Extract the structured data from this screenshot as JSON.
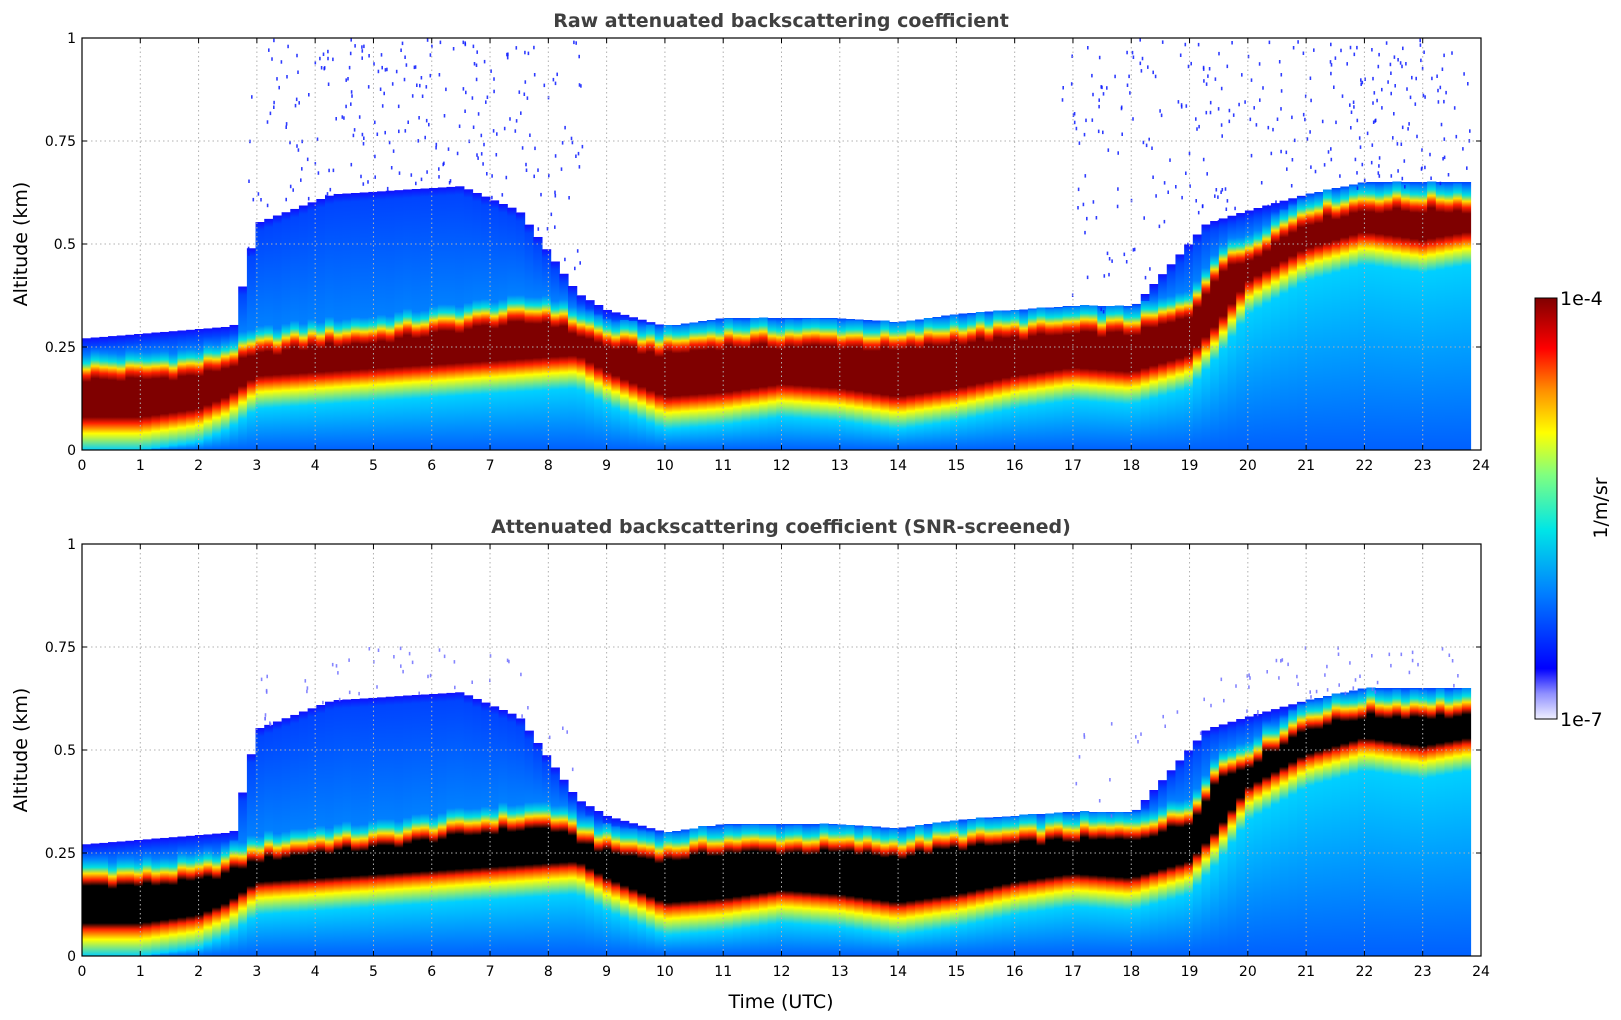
{
  "chart_data": [
    {
      "type": "heatmap",
      "title": "Raw attenuated backscattering coefficient",
      "xlabel": "",
      "ylabel": "Altitude (km)",
      "xlim": [
        0,
        24
      ],
      "ylim": [
        0,
        1
      ],
      "x_ticks": [
        "0",
        "1",
        "2",
        "3",
        "4",
        "5",
        "6",
        "7",
        "8",
        "9",
        "10",
        "11",
        "12",
        "13",
        "14",
        "15",
        "16",
        "17",
        "18",
        "19",
        "20",
        "21",
        "22",
        "23",
        "24"
      ],
      "y_ticks": [
        "0",
        "0.25",
        "0.5",
        "0.75",
        "1"
      ],
      "grid": true,
      "screened": false,
      "layer_top_km": [
        {
          "x": 0,
          "y": 0.19
        },
        {
          "x": 1,
          "y": 0.19
        },
        {
          "x": 2,
          "y": 0.2
        },
        {
          "x": 2.5,
          "y": 0.22
        },
        {
          "x": 3,
          "y": 0.25
        },
        {
          "x": 4,
          "y": 0.27
        },
        {
          "x": 5,
          "y": 0.28
        },
        {
          "x": 6,
          "y": 0.3
        },
        {
          "x": 7,
          "y": 0.32
        },
        {
          "x": 8,
          "y": 0.33
        },
        {
          "x": 8.5,
          "y": 0.3
        },
        {
          "x": 9,
          "y": 0.27
        },
        {
          "x": 10,
          "y": 0.25
        },
        {
          "x": 11,
          "y": 0.27
        },
        {
          "x": 12,
          "y": 0.27
        },
        {
          "x": 13,
          "y": 0.27
        },
        {
          "x": 14,
          "y": 0.26
        },
        {
          "x": 15,
          "y": 0.28
        },
        {
          "x": 16,
          "y": 0.29
        },
        {
          "x": 17,
          "y": 0.3
        },
        {
          "x": 18,
          "y": 0.3
        },
        {
          "x": 19,
          "y": 0.34
        },
        {
          "x": 19.5,
          "y": 0.45
        },
        {
          "x": 20,
          "y": 0.48
        },
        {
          "x": 21,
          "y": 0.57
        },
        {
          "x": 22,
          "y": 0.6
        },
        {
          "x": 23,
          "y": 0.6
        },
        {
          "x": 23.8,
          "y": 0.6
        }
      ],
      "layer_bottom_km": [
        {
          "x": 0,
          "y": 0.07
        },
        {
          "x": 1,
          "y": 0.07
        },
        {
          "x": 2,
          "y": 0.09
        },
        {
          "x": 2.5,
          "y": 0.12
        },
        {
          "x": 3,
          "y": 0.17
        },
        {
          "x": 8.5,
          "y": 0.22
        },
        {
          "x": 9,
          "y": 0.18
        },
        {
          "x": 10,
          "y": 0.12
        },
        {
          "x": 11,
          "y": 0.13
        },
        {
          "x": 12,
          "y": 0.15
        },
        {
          "x": 13,
          "y": 0.14
        },
        {
          "x": 14,
          "y": 0.12
        },
        {
          "x": 15,
          "y": 0.14
        },
        {
          "x": 16,
          "y": 0.17
        },
        {
          "x": 17,
          "y": 0.19
        },
        {
          "x": 18,
          "y": 0.18
        },
        {
          "x": 19,
          "y": 0.22
        },
        {
          "x": 19.5,
          "y": 0.3
        },
        {
          "x": 20,
          "y": 0.4
        },
        {
          "x": 21,
          "y": 0.48
        },
        {
          "x": 22,
          "y": 0.52
        },
        {
          "x": 23,
          "y": 0.5
        },
        {
          "x": 23.8,
          "y": 0.52
        }
      ],
      "blue_top_km": [
        {
          "x": 0,
          "y": 0.27
        },
        {
          "x": 2.6,
          "y": 0.3
        },
        {
          "x": 3,
          "y": 0.55
        },
        {
          "x": 4.3,
          "y": 0.62
        },
        {
          "x": 6.5,
          "y": 0.64
        },
        {
          "x": 7.5,
          "y": 0.58
        },
        {
          "x": 8.5,
          "y": 0.38
        },
        {
          "x": 9,
          "y": 0.34
        },
        {
          "x": 10,
          "y": 0.3
        },
        {
          "x": 11,
          "y": 0.31
        },
        {
          "x": 14,
          "y": 0.3
        },
        {
          "x": 16,
          "y": 0.32
        },
        {
          "x": 18,
          "y": 0.34
        },
        {
          "x": 19.3,
          "y": 0.55
        },
        {
          "x": 20,
          "y": 0.58
        },
        {
          "x": 21,
          "y": 0.62
        },
        {
          "x": 23.5,
          "y": 0.65
        },
        {
          "x": 23.8,
          "y": 0.62
        }
      ]
    },
    {
      "type": "heatmap",
      "title": "Attenuated backscattering coefficient (SNR-screened)",
      "xlabel": "Time (UTC)",
      "ylabel": "Altitude (km)",
      "xlim": [
        0,
        24
      ],
      "ylim": [
        0,
        1
      ],
      "x_ticks": [
        "0",
        "1",
        "2",
        "3",
        "4",
        "5",
        "6",
        "7",
        "8",
        "9",
        "10",
        "11",
        "12",
        "13",
        "14",
        "15",
        "16",
        "17",
        "18",
        "19",
        "20",
        "21",
        "22",
        "23",
        "24"
      ],
      "y_ticks": [
        "0",
        "0.25",
        "0.5",
        "0.75",
        "1"
      ],
      "grid": true,
      "screened": true,
      "saturated_color": "#000000"
    }
  ],
  "colorbar": {
    "label": "1/m/sr",
    "max_label": "1e-4",
    "min_label": "1e-7",
    "scale": "log",
    "colormap": "jet",
    "range": [
      1e-07,
      0.0001
    ]
  },
  "colors": {
    "axis": "#000000",
    "grid": "#b0b0b0",
    "title": "#404040",
    "jet": [
      "#00008f",
      "#0000ff",
      "#007fff",
      "#00ffff",
      "#7fff7f",
      "#ffff00",
      "#ff7f00",
      "#ff0000",
      "#7f0000"
    ]
  }
}
